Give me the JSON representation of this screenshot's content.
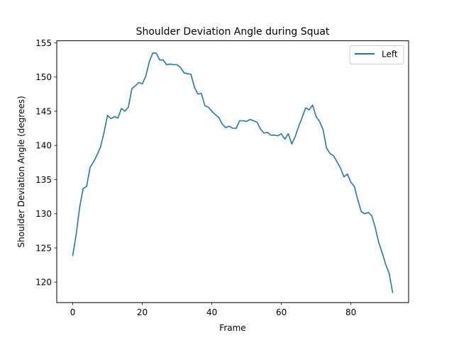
{
  "chart_data": {
    "type": "line",
    "title": "Shoulder Deviation Angle during Squat",
    "xlabel": "Frame",
    "ylabel": "Shoulder Deviation Angle (degrees)",
    "xlim": [
      -4.6,
      96.6
    ],
    "ylim": [
      117.0,
      155.3
    ],
    "xticks": [
      0,
      20,
      40,
      60,
      80
    ],
    "yticks": [
      120,
      125,
      130,
      135,
      140,
      145,
      150,
      155
    ],
    "grid": false,
    "legend_position": "top-right",
    "series": [
      {
        "name": "Left",
        "color": "#1f77b4",
        "x": [
          0,
          1,
          2,
          3,
          4,
          5,
          6,
          7,
          8,
          9,
          10,
          11,
          12,
          13,
          14,
          15,
          16,
          17,
          18,
          19,
          20,
          21,
          22,
          23,
          24,
          25,
          26,
          27,
          28,
          29,
          30,
          31,
          32,
          33,
          34,
          35,
          36,
          37,
          38,
          39,
          40,
          41,
          42,
          43,
          44,
          45,
          46,
          47,
          48,
          49,
          50,
          51,
          52,
          53,
          54,
          55,
          56,
          57,
          58,
          59,
          60,
          61,
          62,
          63,
          64,
          65,
          66,
          67,
          68,
          69,
          70,
          71,
          72,
          73,
          74,
          75,
          76,
          77,
          78,
          79,
          80,
          81,
          82,
          83,
          84,
          85,
          86,
          87,
          88,
          89,
          90,
          91,
          92
        ],
        "values": [
          123.9,
          127.0,
          131.0,
          133.7,
          134.0,
          136.8,
          137.6,
          138.6,
          139.8,
          141.9,
          144.4,
          143.9,
          144.2,
          144.0,
          145.4,
          145.0,
          145.6,
          148.3,
          148.7,
          149.2,
          149.0,
          150.1,
          152.2,
          153.5,
          153.5,
          152.5,
          152.5,
          151.8,
          151.9,
          151.8,
          151.8,
          151.4,
          150.6,
          150.5,
          150.4,
          148.5,
          147.5,
          147.6,
          145.8,
          145.6,
          145.0,
          144.5,
          144.1,
          143.1,
          142.6,
          142.8,
          142.5,
          142.5,
          143.6,
          143.6,
          143.5,
          143.8,
          143.6,
          143.4,
          142.4,
          141.8,
          141.9,
          141.5,
          141.5,
          141.4,
          141.7,
          140.9,
          141.7,
          140.2,
          141.3,
          142.8,
          144.1,
          145.5,
          145.2,
          145.9,
          144.2,
          143.5,
          142.3,
          139.6,
          138.8,
          138.5,
          137.6,
          136.7,
          135.4,
          135.8,
          134.6,
          134.0,
          132.0,
          130.3,
          130.0,
          130.2,
          129.7,
          128.0,
          125.8,
          124.3,
          122.6,
          121.3,
          118.5
        ]
      }
    ]
  }
}
